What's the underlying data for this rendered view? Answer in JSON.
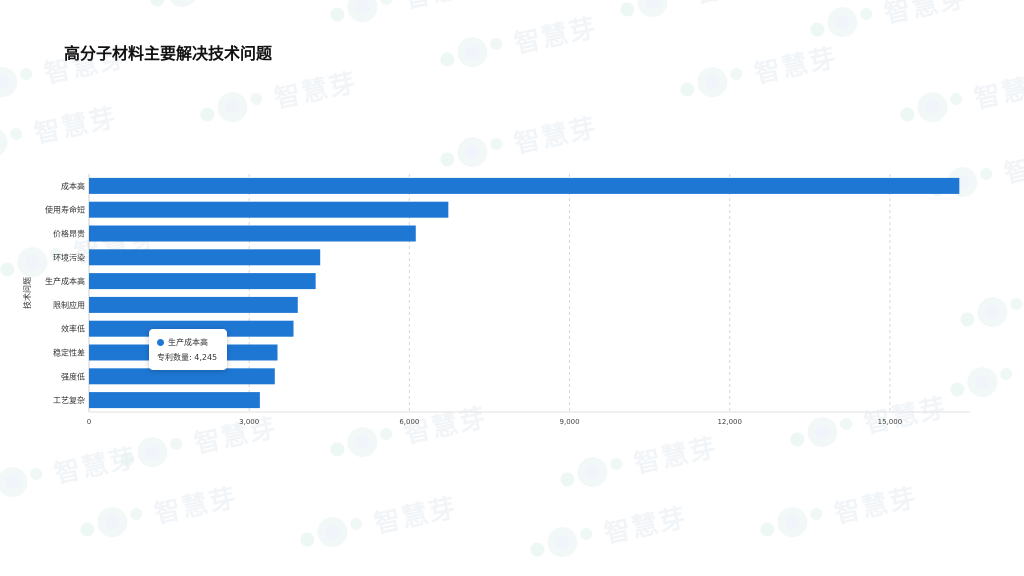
{
  "watermark": {
    "text": "智慧芽"
  },
  "title": "高分子材料主要解决技术问题",
  "chart_data": {
    "type": "bar",
    "orientation": "horizontal",
    "categories": [
      "成本高",
      "使用寿命短",
      "价格昂贵",
      "环境污染",
      "生产成本高",
      "限制应用",
      "效率低",
      "稳定性差",
      "强度低",
      "工艺复杂"
    ],
    "series": [
      {
        "name": "专利数量",
        "values": [
          16300,
          6730,
          6120,
          4330,
          4245,
          3910,
          3830,
          3530,
          3480,
          3200
        ]
      }
    ],
    "xlim": [
      0,
      16500
    ],
    "xticks": [
      0,
      3000,
      6000,
      9000,
      12000,
      15000
    ],
    "xtick_labels": [
      "0",
      "3,000",
      "6,000",
      "9,000",
      "12,000",
      "15,000"
    ],
    "xlabel": "",
    "ylabel": "技术问题",
    "grid": "vertical-dashed",
    "color": "#1e77d3"
  },
  "tooltip": {
    "category": "生产成本高",
    "label": "专利数量: 4,245",
    "color": "#1e77d3"
  }
}
